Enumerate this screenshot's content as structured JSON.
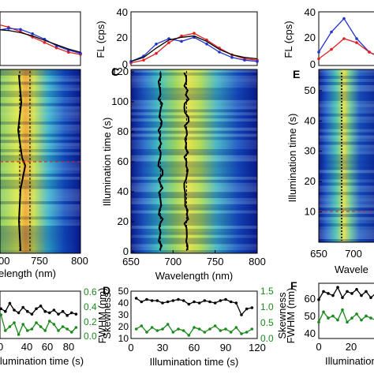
{
  "colors": {
    "red": "#e02020",
    "blue": "#2233cc",
    "black": "#000000",
    "green": "#1a8a1a",
    "heat_dark": "#0a1a8a"
  },
  "panel_labels": {
    "c": "C",
    "d": "D",
    "e": "E",
    "f": "F"
  },
  "labels": {
    "a_xlabel": "elength (nm)",
    "a_bottom_xlabel": "llumination time (s)",
    "a_skewness": "Skewness",
    "center_top_ylabel": "FL (cps)",
    "center_xlabel": "Wavelength (nm)",
    "center_ylabel": "Illumination time (s)",
    "d_xlabel": "Illumination time (s)",
    "d_ylabel": "FWHM (nm)",
    "d_skewness": "Skewness",
    "right_top_ylabel": "FL (cps)",
    "e_ylabel": "Illumination time (s)",
    "e_xlabel": "Wavele",
    "f_ylabel": "FWHM (nm)",
    "f_xlabel": "Illumination"
  },
  "chart_data": [
    {
      "id": "left-top-spectrum",
      "type": "line",
      "series": [
        {
          "color": "red",
          "x": [
            650,
            665,
            680,
            695,
            710,
            725,
            740,
            755,
            770,
            785,
            800
          ],
          "y": [
            25,
            30,
            34,
            36,
            33,
            29,
            24,
            19,
            14,
            10,
            8
          ]
        },
        {
          "color": "blue",
          "x": [
            650,
            665,
            680,
            695,
            710,
            725,
            740,
            755,
            770,
            785,
            800
          ],
          "y": [
            20,
            24,
            27,
            30,
            32,
            31,
            27,
            22,
            16,
            12,
            9
          ]
        },
        {
          "color": "black",
          "x": [
            650,
            665,
            680,
            695,
            710,
            725,
            740,
            755,
            770,
            785,
            800
          ],
          "y": [
            22,
            26,
            29,
            31,
            30,
            28,
            25,
            21,
            17,
            13,
            10
          ]
        }
      ]
    },
    {
      "id": "left-heatmap",
      "type": "heatmap",
      "xticks": [
        "800"
      ],
      "xtick_partial": "00",
      "xtick_750": "750",
      "xlim": [
        700,
        800
      ]
    },
    {
      "id": "left-bottom",
      "type": "line",
      "xticks": [
        "40",
        "60",
        "80"
      ],
      "xtick_partial": "0",
      "right_yticks": [
        "0.6",
        "0.4",
        "0.2",
        "0.0"
      ],
      "series": [
        {
          "color": "black",
          "x": [
            5,
            10,
            15,
            20,
            25,
            30,
            35,
            40,
            45,
            50,
            55,
            60,
            65,
            70,
            75,
            80,
            85,
            90,
            95
          ],
          "y": [
            45,
            42,
            40,
            46,
            41,
            39,
            43,
            40,
            38,
            42,
            44,
            40,
            39,
            41,
            38,
            40,
            37,
            39,
            38
          ]
        },
        {
          "color": "green",
          "x": [
            5,
            10,
            15,
            20,
            25,
            30,
            35,
            40,
            45,
            50,
            55,
            60,
            65,
            70,
            75,
            80,
            85,
            90,
            95
          ],
          "y": [
            0.25,
            0.3,
            0.1,
            0.15,
            0.2,
            0.05,
            0.18,
            0.1,
            0.12,
            0.2,
            0.15,
            0.1,
            0.22,
            0.18,
            0.1,
            0.15,
            0.12,
            0.08,
            0.14
          ]
        }
      ]
    },
    {
      "id": "center-top-spectrum",
      "type": "line",
      "yticks": [
        "40",
        "20",
        "0"
      ],
      "ylim": [
        0,
        40
      ],
      "xlim": [
        650,
        800
      ],
      "series": [
        {
          "color": "red",
          "x": [
            650,
            665,
            680,
            695,
            710,
            725,
            740,
            755,
            770,
            785,
            800
          ],
          "y": [
            2,
            4,
            9,
            17,
            22,
            24,
            19,
            13,
            8,
            5,
            4
          ]
        },
        {
          "color": "blue",
          "x": [
            650,
            665,
            680,
            695,
            710,
            725,
            740,
            755,
            770,
            785,
            800
          ],
          "y": [
            3,
            7,
            16,
            20,
            18,
            21,
            16,
            10,
            6,
            4,
            3
          ]
        },
        {
          "color": "black",
          "x": [
            650,
            665,
            680,
            695,
            710,
            725,
            740,
            755,
            770,
            785,
            800
          ],
          "y": [
            3,
            6,
            13,
            19,
            21,
            22,
            18,
            12,
            8,
            6,
            5
          ]
        }
      ]
    },
    {
      "id": "center-heatmap",
      "type": "heatmap",
      "xticks": [
        "650",
        "700",
        "750",
        "800"
      ],
      "yticks": [
        "120",
        "100",
        "80",
        "60",
        "40",
        "20",
        "0"
      ],
      "xlim": [
        650,
        800
      ],
      "ylim": [
        0,
        120
      ],
      "traces": [
        {
          "name": "peak-1",
          "x_center": 685
        },
        {
          "name": "peak-2",
          "x_center": 716
        }
      ]
    },
    {
      "id": "center-bottom",
      "type": "line",
      "xticks": [
        "0",
        "30",
        "60",
        "90",
        "120"
      ],
      "yticks": [
        "50",
        "40",
        "30",
        "20",
        "10"
      ],
      "right_yticks": [
        "1.5",
        "1.0",
        "0.5",
        "0.0"
      ],
      "xlim": [
        0,
        120
      ],
      "ylim": [
        10,
        50
      ],
      "series": [
        {
          "color": "black",
          "x": [
            5,
            10,
            15,
            20,
            25,
            30,
            35,
            40,
            45,
            50,
            55,
            60,
            65,
            70,
            75,
            80,
            85,
            90,
            95,
            100,
            105,
            110,
            115
          ],
          "y": [
            44,
            41,
            43,
            42,
            42,
            40,
            41,
            42,
            43,
            42,
            39,
            41,
            40,
            42,
            41,
            40,
            42,
            43,
            41,
            40,
            30,
            35,
            36
          ]
        },
        {
          "color": "green",
          "x": [
            5,
            10,
            15,
            20,
            25,
            30,
            35,
            40,
            45,
            50,
            55,
            60,
            65,
            70,
            75,
            80,
            85,
            90,
            95,
            100,
            105,
            110,
            115
          ],
          "y": [
            0.3,
            0.4,
            0.2,
            0.35,
            0.25,
            0.3,
            0.45,
            0.2,
            0.3,
            0.25,
            0.1,
            0.35,
            0.3,
            0.2,
            0.3,
            0.4,
            0.25,
            0.3,
            0.2,
            0.35,
            0.15,
            0.2,
            0.3
          ]
        }
      ]
    },
    {
      "id": "right-top-spectrum",
      "type": "line",
      "yticks": [
        "40",
        "20",
        "0"
      ],
      "ylim": [
        0,
        40
      ],
      "series": [
        {
          "color": "blue",
          "x": [
            650,
            670,
            690,
            710,
            730,
            750
          ],
          "y": [
            10,
            25,
            35,
            20,
            10,
            5
          ]
        },
        {
          "color": "red",
          "x": [
            650,
            670,
            690,
            710,
            730,
            750
          ],
          "y": [
            5,
            12,
            20,
            17,
            10,
            6
          ]
        }
      ]
    },
    {
      "id": "right-heatmap",
      "type": "heatmap",
      "xticks": [
        "650",
        "700"
      ],
      "yticks": [
        "50",
        "40",
        "30",
        "20",
        "10"
      ],
      "xlim": [
        650,
        750
      ],
      "ylim": [
        0,
        57
      ]
    },
    {
      "id": "right-bottom",
      "type": "line",
      "xticks": [
        "0",
        "20"
      ],
      "yticks": [
        "60",
        "50",
        "40"
      ],
      "ylim": [
        35,
        62
      ],
      "series": [
        {
          "color": "black",
          "x": [
            0,
            3,
            6,
            9,
            12,
            15,
            18,
            21,
            24,
            27,
            30,
            33,
            36
          ],
          "y": [
            54,
            58,
            57,
            56,
            60,
            55,
            58,
            57,
            59,
            56,
            58,
            55,
            57
          ]
        },
        {
          "color": "green",
          "x": [
            0,
            3,
            6,
            9,
            12,
            15,
            18,
            21,
            24,
            27,
            30,
            33,
            36
          ],
          "y": [
            43,
            48,
            45,
            46,
            44,
            49,
            43,
            45,
            47,
            44,
            46,
            45,
            44
          ]
        }
      ]
    }
  ]
}
